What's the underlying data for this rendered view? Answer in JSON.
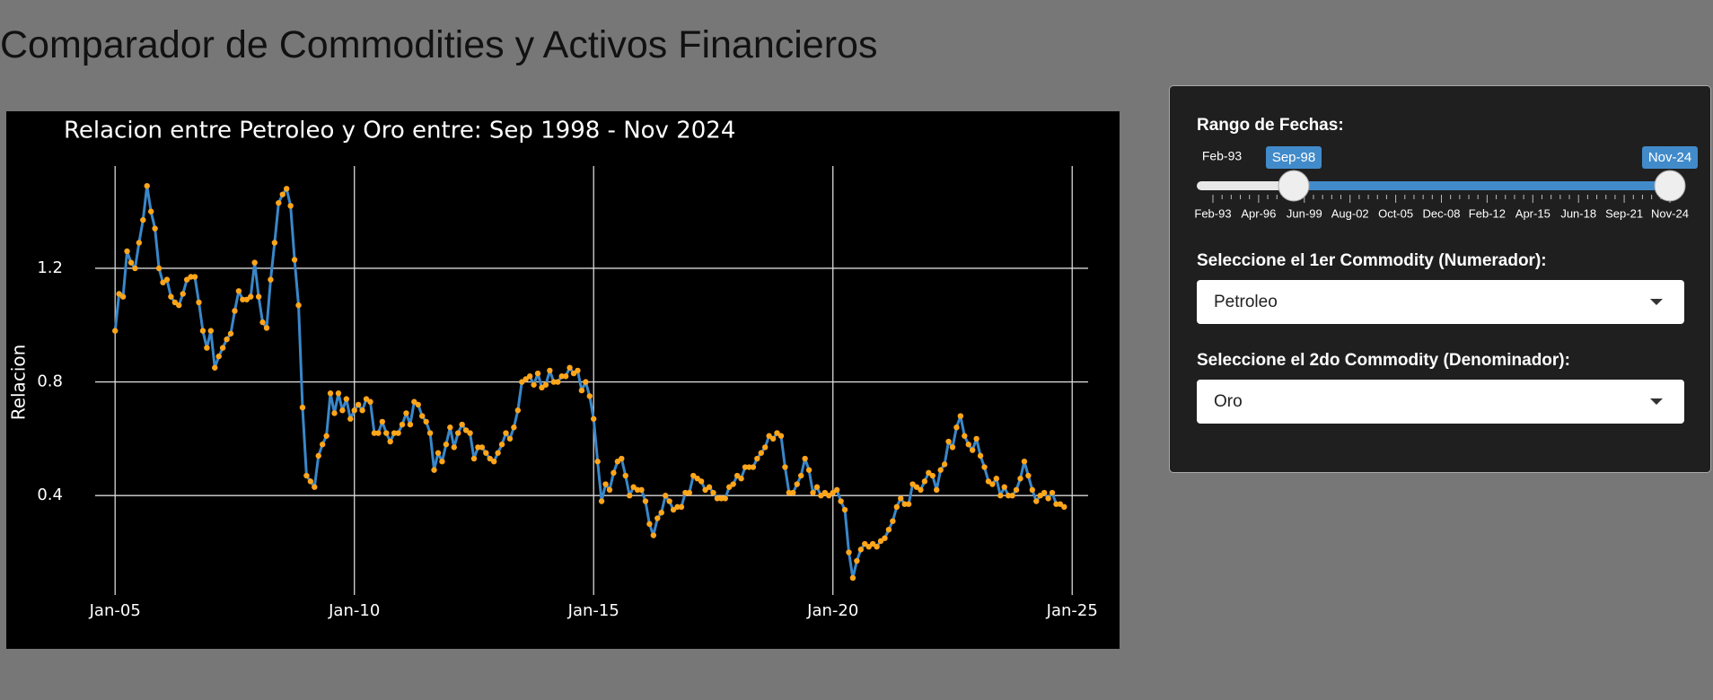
{
  "title": "Comparador de Commodities y Activos Financieros",
  "chart_data": {
    "type": "line",
    "title": "Relacion entre Petroleo y Oro entre: Sep 1998 - Nov 2024",
    "y_label": "Relacion",
    "x": [
      "2005-01",
      "2005-02",
      "2005-03",
      "2005-04",
      "2005-05",
      "2005-06",
      "2005-07",
      "2005-08",
      "2005-09",
      "2005-10",
      "2005-11",
      "2005-12",
      "2006-01",
      "2006-02",
      "2006-03",
      "2006-04",
      "2006-05",
      "2006-06",
      "2006-07",
      "2006-08",
      "2006-09",
      "2006-10",
      "2006-11",
      "2006-12",
      "2007-01",
      "2007-02",
      "2007-03",
      "2007-04",
      "2007-05",
      "2007-06",
      "2007-07",
      "2007-08",
      "2007-09",
      "2007-10",
      "2007-11",
      "2007-12",
      "2008-01",
      "2008-02",
      "2008-03",
      "2008-04",
      "2008-05",
      "2008-06",
      "2008-07",
      "2008-08",
      "2008-09",
      "2008-10",
      "2008-11",
      "2008-12",
      "2009-01",
      "2009-02",
      "2009-03",
      "2009-04",
      "2009-05",
      "2009-06",
      "2009-07",
      "2009-08",
      "2009-09",
      "2009-10",
      "2009-11",
      "2009-12",
      "2010-01",
      "2010-02",
      "2010-03",
      "2010-04",
      "2010-05",
      "2010-06",
      "2010-07",
      "2010-08",
      "2010-09",
      "2010-10",
      "2010-11",
      "2010-12",
      "2011-01",
      "2011-02",
      "2011-03",
      "2011-04",
      "2011-05",
      "2011-06",
      "2011-07",
      "2011-08",
      "2011-09",
      "2011-10",
      "2011-11",
      "2011-12",
      "2012-01",
      "2012-02",
      "2012-03",
      "2012-04",
      "2012-05",
      "2012-06",
      "2012-07",
      "2012-08",
      "2012-09",
      "2012-10",
      "2012-11",
      "2012-12",
      "2013-01",
      "2013-02",
      "2013-03",
      "2013-04",
      "2013-05",
      "2013-06",
      "2013-07",
      "2013-08",
      "2013-09",
      "2013-10",
      "2013-11",
      "2013-12",
      "2014-01",
      "2014-02",
      "2014-03",
      "2014-04",
      "2014-05",
      "2014-06",
      "2014-07",
      "2014-08",
      "2014-09",
      "2014-10",
      "2014-11",
      "2014-12",
      "2015-01",
      "2015-02",
      "2015-03",
      "2015-04",
      "2015-05",
      "2015-06",
      "2015-07",
      "2015-08",
      "2015-09",
      "2015-10",
      "2015-11",
      "2015-12",
      "2016-01",
      "2016-02",
      "2016-03",
      "2016-04",
      "2016-05",
      "2016-06",
      "2016-07",
      "2016-08",
      "2016-09",
      "2016-10",
      "2016-11",
      "2016-12",
      "2017-01",
      "2017-02",
      "2017-03",
      "2017-04",
      "2017-05",
      "2017-06",
      "2017-07",
      "2017-08",
      "2017-09",
      "2017-10",
      "2017-11",
      "2017-12",
      "2018-01",
      "2018-02",
      "2018-03",
      "2018-04",
      "2018-05",
      "2018-06",
      "2018-07",
      "2018-08",
      "2018-09",
      "2018-10",
      "2018-11",
      "2018-12",
      "2019-01",
      "2019-02",
      "2019-03",
      "2019-04",
      "2019-05",
      "2019-06",
      "2019-07",
      "2019-08",
      "2019-09",
      "2019-10",
      "2019-11",
      "2019-12",
      "2020-01",
      "2020-02",
      "2020-03",
      "2020-04",
      "2020-05",
      "2020-06",
      "2020-07",
      "2020-08",
      "2020-09",
      "2020-10",
      "2020-11",
      "2020-12",
      "2021-01",
      "2021-02",
      "2021-03",
      "2021-04",
      "2021-05",
      "2021-06",
      "2021-07",
      "2021-08",
      "2021-09",
      "2021-10",
      "2021-11",
      "2021-12",
      "2022-01",
      "2022-02",
      "2022-03",
      "2022-04",
      "2022-05",
      "2022-06",
      "2022-07",
      "2022-08",
      "2022-09",
      "2022-10",
      "2022-11",
      "2022-12",
      "2023-01",
      "2023-02",
      "2023-03",
      "2023-04",
      "2023-05",
      "2023-06",
      "2023-07",
      "2023-08",
      "2023-09",
      "2023-10",
      "2023-11",
      "2023-12",
      "2024-01",
      "2024-02",
      "2024-03",
      "2024-04",
      "2024-05",
      "2024-06",
      "2024-07",
      "2024-08",
      "2024-09",
      "2024-10",
      "2024-11"
    ],
    "values": [
      0.98,
      1.11,
      1.1,
      1.26,
      1.22,
      1.2,
      1.29,
      1.37,
      1.49,
      1.4,
      1.34,
      1.2,
      1.15,
      1.16,
      1.1,
      1.08,
      1.07,
      1.11,
      1.16,
      1.17,
      1.17,
      1.08,
      0.98,
      0.92,
      0.98,
      0.85,
      0.89,
      0.92,
      0.95,
      0.97,
      1.05,
      1.12,
      1.09,
      1.09,
      1.1,
      1.22,
      1.1,
      1.01,
      0.99,
      1.16,
      1.29,
      1.43,
      1.46,
      1.48,
      1.42,
      1.23,
      1.07,
      0.71,
      0.47,
      0.45,
      0.43,
      0.54,
      0.58,
      0.61,
      0.76,
      0.69,
      0.76,
      0.7,
      0.74,
      0.67,
      0.7,
      0.72,
      0.7,
      0.74,
      0.73,
      0.62,
      0.62,
      0.66,
      0.62,
      0.59,
      0.62,
      0.62,
      0.65,
      0.69,
      0.65,
      0.73,
      0.72,
      0.68,
      0.66,
      0.62,
      0.49,
      0.55,
      0.52,
      0.58,
      0.64,
      0.57,
      0.62,
      0.65,
      0.63,
      0.62,
      0.53,
      0.57,
      0.57,
      0.55,
      0.53,
      0.52,
      0.55,
      0.58,
      0.62,
      0.6,
      0.64,
      0.7,
      0.8,
      0.81,
      0.82,
      0.79,
      0.83,
      0.78,
      0.79,
      0.84,
      0.8,
      0.8,
      0.82,
      0.82,
      0.85,
      0.83,
      0.84,
      0.77,
      0.8,
      0.75,
      0.67,
      0.52,
      0.38,
      0.44,
      0.42,
      0.48,
      0.52,
      0.53,
      0.47,
      0.4,
      0.43,
      0.42,
      0.42,
      0.38,
      0.3,
      0.26,
      0.32,
      0.34,
      0.4,
      0.38,
      0.35,
      0.36,
      0.36,
      0.41,
      0.41,
      0.47,
      0.46,
      0.45,
      0.42,
      0.43,
      0.41,
      0.39,
      0.39,
      0.39,
      0.43,
      0.44,
      0.47,
      0.46,
      0.5,
      0.5,
      0.5,
      0.53,
      0.55,
      0.57,
      0.61,
      0.6,
      0.62,
      0.61,
      0.5,
      0.41,
      0.41,
      0.44,
      0.47,
      0.53,
      0.49,
      0.41,
      0.43,
      0.4,
      0.41,
      0.4,
      0.41,
      0.42,
      0.38,
      0.35,
      0.2,
      0.11,
      0.17,
      0.21,
      0.23,
      0.22,
      0.23,
      0.22,
      0.24,
      0.25,
      0.28,
      0.31,
      0.36,
      0.39,
      0.37,
      0.37,
      0.44,
      0.43,
      0.42,
      0.45,
      0.48,
      0.47,
      0.42,
      0.49,
      0.51,
      0.59,
      0.57,
      0.64,
      0.68,
      0.61,
      0.58,
      0.56,
      0.6,
      0.54,
      0.5,
      0.45,
      0.44,
      0.46,
      0.4,
      0.43,
      0.4,
      0.4,
      0.42,
      0.46,
      0.52,
      0.47,
      0.42,
      0.38,
      0.4,
      0.41,
      0.39,
      0.41,
      0.37,
      0.37,
      0.36
    ],
    "color": "#3a87c9",
    "marker_color": "#ffa51a",
    "xlim": [
      "2004-08",
      "2025-05"
    ],
    "ylim": [
      0.05,
      1.56
    ],
    "xticks": [
      {
        "value": "2005-01",
        "label": "Jan-05"
      },
      {
        "value": "2010-01",
        "label": "Jan-10"
      },
      {
        "value": "2015-01",
        "label": "Jan-15"
      },
      {
        "value": "2020-01",
        "label": "Jan-20"
      },
      {
        "value": "2025-01",
        "label": "Jan-25"
      }
    ],
    "yticks": [
      0.4,
      0.8,
      1.2
    ],
    "grid": true
  },
  "controls": {
    "date_range": {
      "label": "Rango de Fechas:",
      "min": "Feb-93",
      "from": "Sep-98",
      "to": "Nov-24",
      "ticks": [
        "Feb-93",
        "Apr-96",
        "Jun-99",
        "Aug-02",
        "Oct-05",
        "Dec-08",
        "Feb-12",
        "Apr-15",
        "Jun-18",
        "Sep-21",
        "Nov-24"
      ]
    },
    "numerator": {
      "label": "Seleccione el 1er Commodity (Numerador):",
      "value": "Petroleo"
    },
    "denominator": {
      "label": "Seleccione el 2do Commodity (Denominador):",
      "value": "Oro"
    }
  }
}
